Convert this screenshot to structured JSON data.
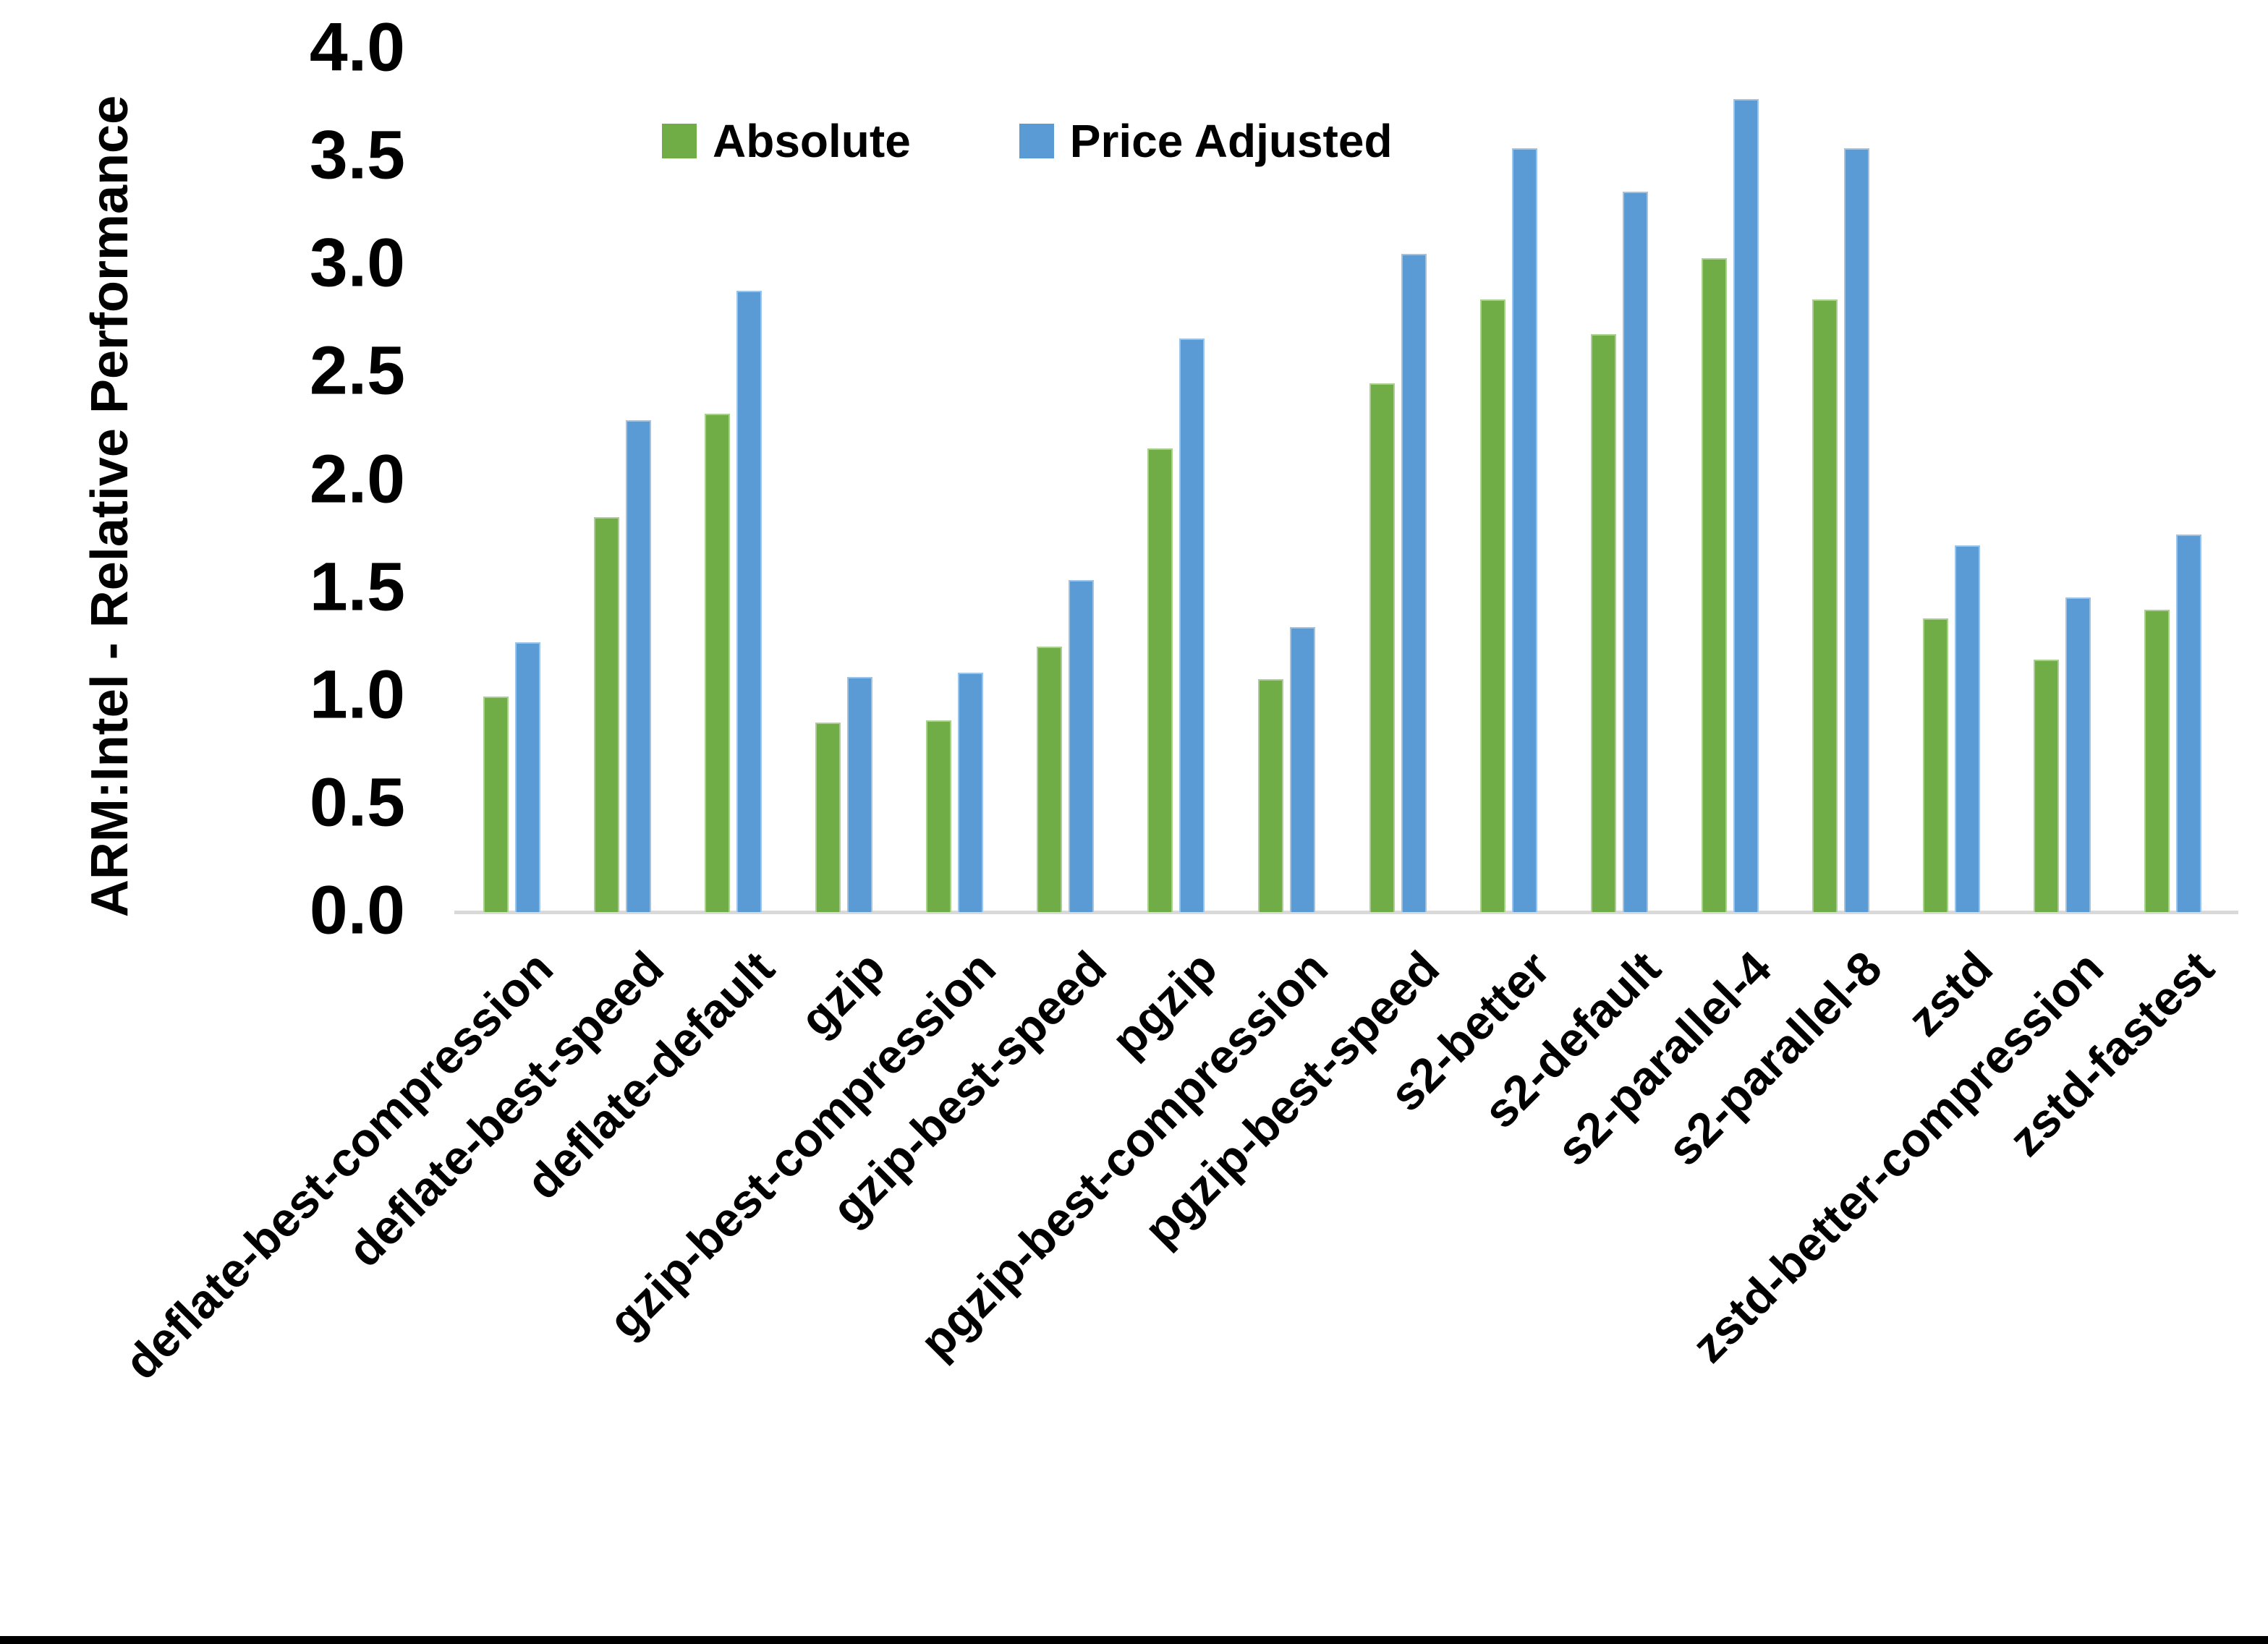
{
  "page": {
    "background": "#FFFFFF",
    "bottom_border_color": "#000000",
    "axis_line_color": "#D9D9D9",
    "text_color": "#000000"
  },
  "chart_data": {
    "type": "bar",
    "title": "",
    "ylabel": "ARM:Intel - Relative Performance",
    "xlabel": "",
    "ylim": [
      0.0,
      4.0
    ],
    "ytick_step": 0.5,
    "ytick_labels": [
      "0.0",
      "0.5",
      "1.0",
      "1.5",
      "2.0",
      "2.5",
      "3.0",
      "3.5",
      "4.0"
    ],
    "grid": "off",
    "legend_position": "top-center",
    "categories": [
      "deflate-best-compression",
      "deflate-best-speed",
      "deflate-default",
      "gzip",
      "gzip-best-compression",
      "gzip-best-speed",
      "pgzip",
      "pgzip-best-compression",
      "pgzip-best-speed",
      "s2-better",
      "s2-default",
      "s2-parallel-4",
      "s2-parallel-8",
      "zstd",
      "zstd-better-compression",
      "zstd-fastest"
    ],
    "series": [
      {
        "name": "Absolute",
        "color": "#70AD47",
        "border_color": "#A9D08E",
        "values": [
          1.0,
          1.83,
          2.31,
          0.88,
          0.89,
          1.23,
          2.15,
          1.08,
          2.45,
          2.84,
          2.68,
          3.03,
          2.84,
          1.36,
          1.17,
          1.4
        ]
      },
      {
        "name": "Price Adjusted",
        "color": "#5B9BD5",
        "border_color": "#9DC3E6",
        "values": [
          1.25,
          2.28,
          2.88,
          1.09,
          1.11,
          1.54,
          2.66,
          1.32,
          3.05,
          3.54,
          3.34,
          3.77,
          3.54,
          1.7,
          1.46,
          1.75
        ]
      }
    ]
  }
}
